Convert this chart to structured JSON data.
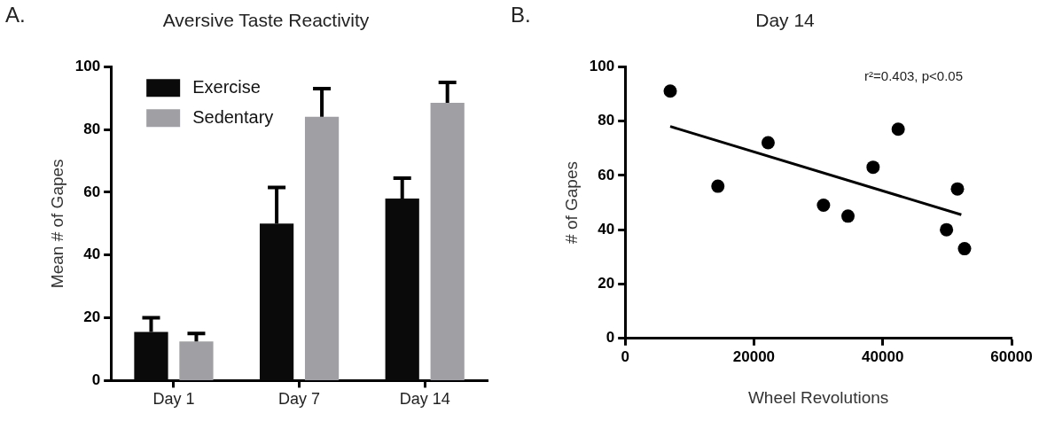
{
  "chart_data": [
    {
      "type": "bar",
      "title": "Aversive Taste Reactivity",
      "ylabel": "Mean # of Gapes",
      "annotations": [
        "A."
      ],
      "categories": [
        "Day 1",
        "Day 7",
        "Day 14"
      ],
      "series": [
        {
          "name": "Exercise",
          "color": "#0a0a0a",
          "values": [
            15.5,
            50,
            58
          ],
          "errors": [
            [
              15.5,
              20
            ],
            [
              50,
              61.5
            ],
            [
              58,
              64.5
            ]
          ]
        },
        {
          "name": "Sedentary",
          "color": "#a0a0a4",
          "values": [
            12.5,
            84,
            88.5
          ],
          "errors": [
            [
              12.5,
              15
            ],
            [
              84,
              93
            ],
            [
              88.5,
              95
            ]
          ]
        }
      ],
      "ylim": [
        0,
        100
      ],
      "yticks": [
        0,
        20,
        40,
        60,
        80,
        100
      ],
      "grid": false,
      "legend": "top left"
    },
    {
      "type": "scatter",
      "title": "Day 14",
      "xlabel": "Wheel Revolutions",
      "ylabel": "# of Gapes",
      "annotations": [
        "B.",
        "r²=0.403, p<0.05"
      ],
      "series": [
        {
          "type": "scatter",
          "color": "#000000",
          "x": [
            7000,
            14400,
            22200,
            30800,
            34600,
            38500,
            42400,
            49900,
            51600,
            52700
          ],
          "values": [
            91,
            56,
            72,
            49,
            45,
            63,
            77,
            40,
            55,
            33
          ]
        },
        {
          "type": "line",
          "color": "#000000",
          "marker": "none",
          "x": [
            7000,
            52200
          ],
          "values": [
            78,
            45.5
          ]
        }
      ],
      "xlim": [
        0,
        60000
      ],
      "xticks": [
        0,
        20000,
        40000,
        60000
      ],
      "ylim": [
        0,
        100
      ],
      "yticks": [
        0,
        20,
        40,
        60,
        80,
        100
      ],
      "grid": false,
      "marker": "circle",
      "legend": false
    }
  ]
}
